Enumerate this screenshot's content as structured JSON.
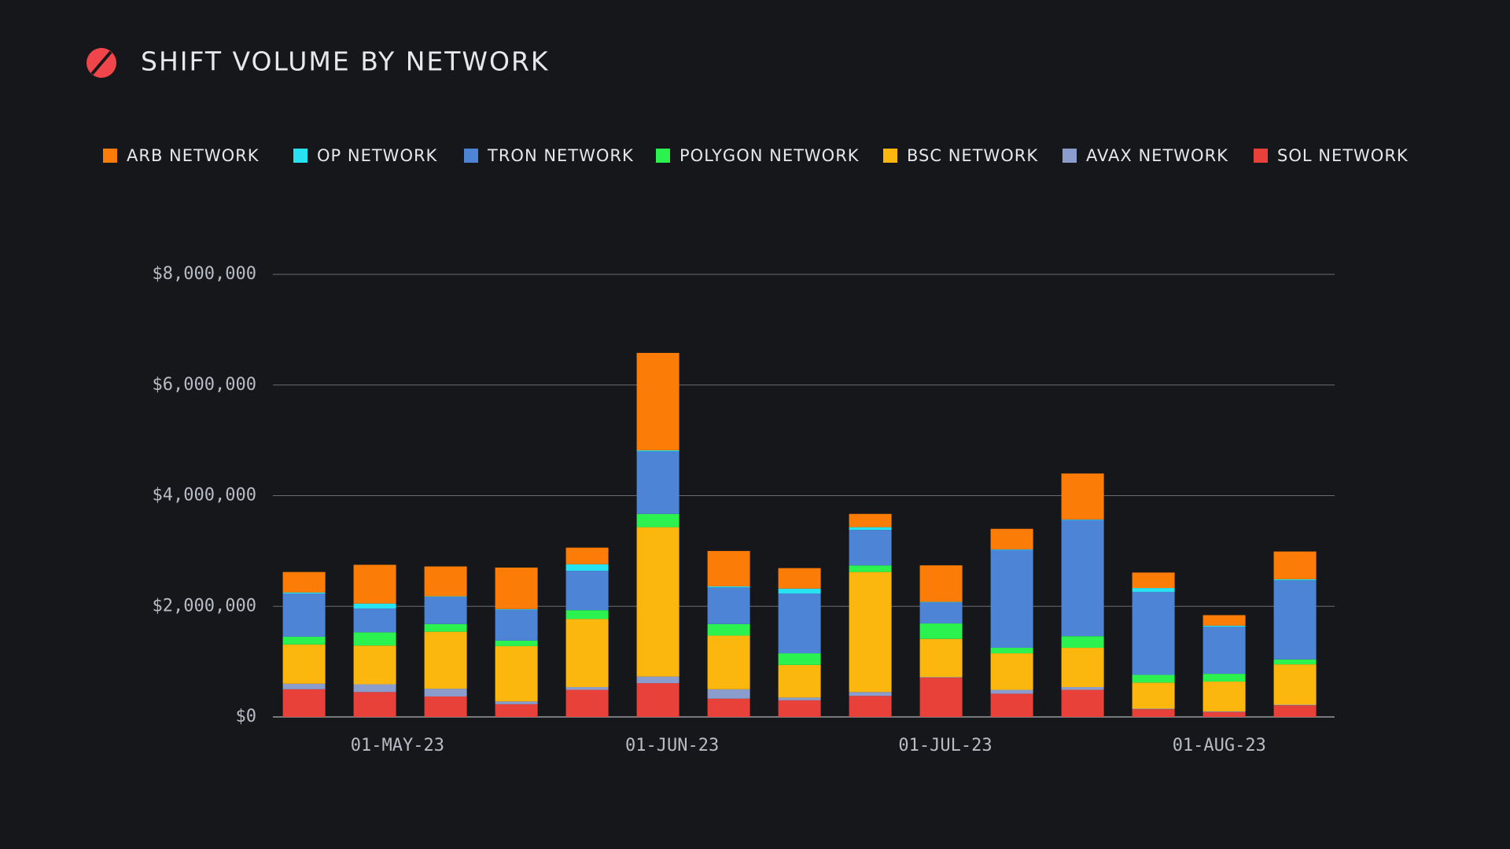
{
  "chart_data": {
    "type": "stacked_bar",
    "title": "SHIFT VOLUME BY NETWORK",
    "categories": [
      null,
      null,
      null,
      null,
      null,
      null,
      null,
      null,
      null,
      null,
      null,
      null,
      null,
      null,
      null
    ],
    "xlim": [
      -0.44,
      14.56
    ],
    "xticks": [
      {
        "value": 1.32,
        "label": "01-MAY-23"
      },
      {
        "value": 5.2,
        "label": "01-JUN-23"
      },
      {
        "value": 9.06,
        "label": "01-JUL-23"
      },
      {
        "value": 12.93,
        "label": "01-AUG-23"
      }
    ],
    "ylim": [
      0,
      8000000
    ],
    "yticks": [
      {
        "value": 0,
        "label": "$0"
      },
      {
        "value": 2000000,
        "label": "$2,000,000"
      },
      {
        "value": 4000000,
        "label": "$4,000,000"
      },
      {
        "value": 6000000,
        "label": "$6,000,000"
      },
      {
        "value": 8000000,
        "label": "$8,000,000"
      }
    ],
    "grid": true,
    "series": [
      {
        "name": "ARB NETWORK",
        "color": "#fb7d07",
        "values": [
          370000,
          700000,
          540000,
          750000,
          300000,
          1760000,
          640000,
          370000,
          240000,
          660000,
          370000,
          830000,
          280000,
          190000,
          500000
        ]
      },
      {
        "name": "OP NETWORK",
        "color": "#27e3f2",
        "values": [
          20000,
          90000,
          10000,
          10000,
          120000,
          20000,
          20000,
          90000,
          50000,
          10000,
          10000,
          10000,
          70000,
          20000,
          20000
        ]
      },
      {
        "name": "TRON NETWORK",
        "color": "#4d84d6",
        "values": [
          780000,
          430000,
          490000,
          560000,
          710000,
          1130000,
          660000,
          1080000,
          640000,
          380000,
          1770000,
          2100000,
          1500000,
          850000,
          1430000
        ]
      },
      {
        "name": "POLYGON NETWORK",
        "color": "#2cf24f",
        "values": [
          140000,
          240000,
          140000,
          100000,
          160000,
          240000,
          210000,
          210000,
          120000,
          280000,
          100000,
          210000,
          140000,
          140000,
          90000
        ]
      },
      {
        "name": "BSC NETWORK",
        "color": "#fbb70d",
        "values": [
          710000,
          700000,
          1030000,
          1000000,
          1230000,
          2700000,
          970000,
          590000,
          2170000,
          690000,
          660000,
          710000,
          470000,
          540000,
          730000
        ]
      },
      {
        "name": "AVAX NETWORK",
        "color": "#8a9dcc",
        "values": [
          100000,
          140000,
          140000,
          50000,
          50000,
          120000,
          170000,
          50000,
          70000,
          10000,
          70000,
          50000,
          10000,
          10000,
          10000
        ]
      },
      {
        "name": "SOL NETWORK",
        "color": "#e8413a",
        "values": [
          500000,
          450000,
          370000,
          230000,
          490000,
          610000,
          330000,
          300000,
          380000,
          710000,
          420000,
          490000,
          140000,
          90000,
          210000
        ]
      }
    ]
  }
}
